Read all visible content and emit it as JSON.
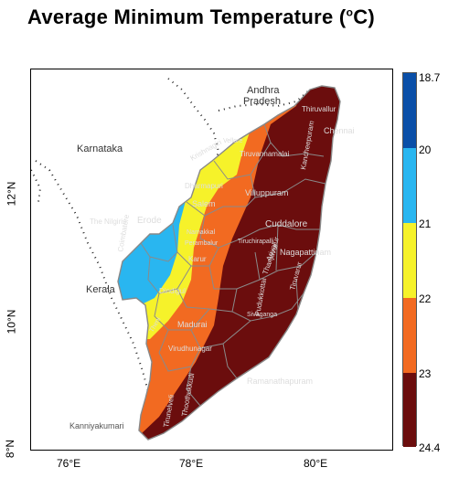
{
  "title": {
    "text": "Average Minimum Temperature (",
    "sup": "o",
    "unit": "C)"
  },
  "axes": {
    "x_ticks": [
      "76°E",
      "78°E",
      "80°E"
    ],
    "y_ticks": [
      "12°N",
      "10°N",
      "8°N"
    ]
  },
  "neighbors": [
    "Andhra",
    "Pradesh",
    "Karnataka",
    "Kerala"
  ],
  "districts": [
    "Thiruvallur",
    "Chennai",
    "Kancheepuram",
    "Tiruvannamalai",
    "Villuppuram",
    "Cuddalore",
    "Nagapattinam",
    "Tiruchirapalli",
    "Ariyalur",
    "Thanjavur",
    "Tiruvarur",
    "Pudukkottai",
    "Sivaganga",
    "Ramanathapuram",
    "Madurai",
    "Virudhunagar",
    "Thoothukkudi",
    "Tirunelveli",
    "Kanniyakumari",
    "The Nilgiris",
    "Erode",
    "Coimbatore",
    "Dindigul",
    "Karur",
    "Salem",
    "Dharmapuri",
    "Krishnagiri",
    "Perambalur",
    "Namakkal",
    "Vellore",
    "Theni"
  ],
  "legend": {
    "ticks": [
      "18.7",
      "20",
      "21",
      "22",
      "23",
      "24.4"
    ],
    "classes": [
      {
        "range": "18.7–20",
        "color": "#0a4fa8"
      },
      {
        "range": "20–21",
        "color": "#29b6f0"
      },
      {
        "range": "21–22",
        "color": "#f6f22a"
      },
      {
        "range": "22–23",
        "color": "#f26a21"
      },
      {
        "range": "23–24.4",
        "color": "#6b0d0d"
      }
    ]
  }
}
